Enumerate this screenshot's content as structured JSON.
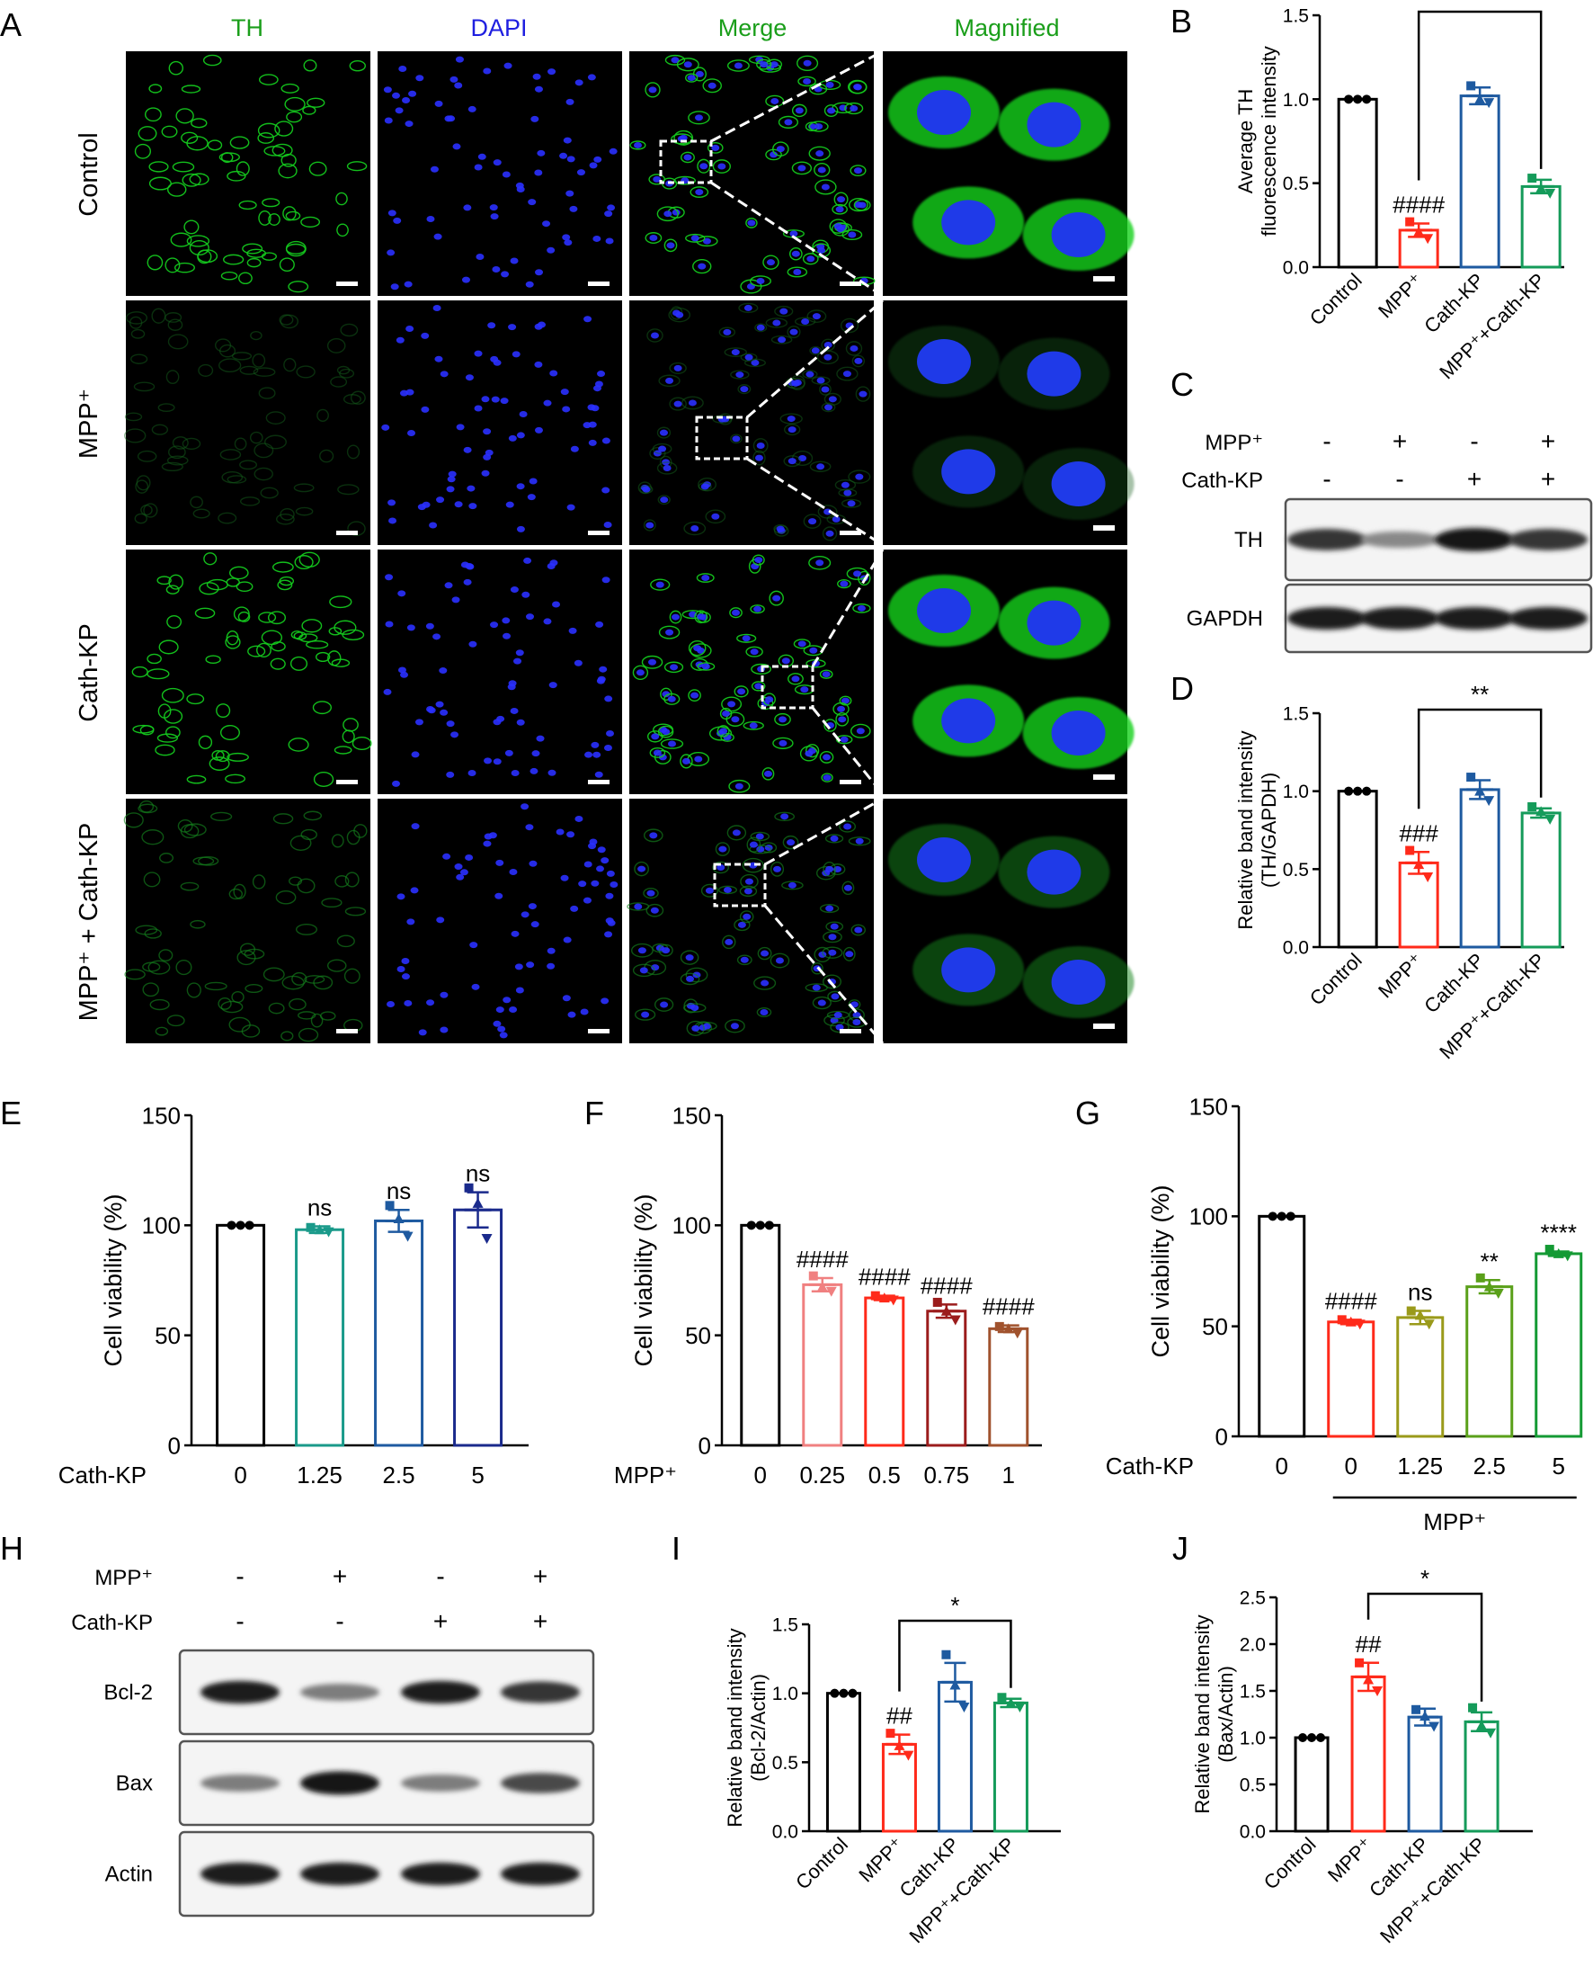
{
  "figure": {
    "panel_letters": [
      "A",
      "B",
      "C",
      "D",
      "E",
      "F",
      "G",
      "H",
      "I",
      "J"
    ],
    "micrograph": {
      "columns": [
        {
          "label": "TH",
          "color": "#1a9e1a"
        },
        {
          "label": "DAPI",
          "color": "#1f1fe0"
        },
        {
          "label": "Merge",
          "color": "#1a9e1a"
        },
        {
          "label": "Magnified",
          "color": "#1a9e1a"
        }
      ],
      "rows": [
        "Control",
        "MPP⁺",
        "Cath-KP",
        "MPP⁺ + Cath-KP"
      ],
      "th_intensity": [
        1.0,
        0.22,
        1.03,
        0.48
      ]
    },
    "blot_C": {
      "treatments": [
        {
          "label": "MPP⁺",
          "signs": [
            "-",
            "+",
            "-",
            "+"
          ]
        },
        {
          "label": "Cath-KP",
          "signs": [
            "-",
            "-",
            "+",
            "+"
          ]
        }
      ],
      "bands": [
        {
          "label": "TH",
          "intensity": [
            0.85,
            0.45,
            1.0,
            0.85
          ]
        },
        {
          "label": "GAPDH",
          "intensity": [
            0.95,
            0.95,
            0.95,
            0.95
          ]
        }
      ]
    },
    "blot_H": {
      "treatments": [
        {
          "label": "MPP⁺",
          "signs": [
            "-",
            "+",
            "-",
            "+"
          ]
        },
        {
          "label": "Cath-KP",
          "signs": [
            "-",
            "-",
            "+",
            "+"
          ]
        }
      ],
      "bands": [
        {
          "label": "Bcl-2",
          "intensity": [
            0.95,
            0.5,
            0.95,
            0.85
          ]
        },
        {
          "label": "Bax",
          "intensity": [
            0.5,
            1.0,
            0.5,
            0.75
          ]
        },
        {
          "label": "Actin",
          "intensity": [
            0.95,
            0.95,
            0.95,
            0.95
          ]
        }
      ]
    }
  },
  "chart_data": [
    {
      "id": "B",
      "type": "bar",
      "ylabel": [
        "Average TH",
        "fluorescence intensity"
      ],
      "ylim": [
        0,
        1.5
      ],
      "yticks": [
        0.0,
        0.5,
        1.0,
        1.5
      ],
      "categories": [
        "Control",
        "MPP⁺",
        "Cath-KP",
        "MPP⁺+Cath-KP"
      ],
      "values": [
        1.0,
        0.22,
        1.02,
        0.48
      ],
      "errors": [
        0.0,
        0.04,
        0.05,
        0.04
      ],
      "points": [
        [
          1.0,
          1.0,
          1.0
        ],
        [
          0.27,
          0.21,
          0.17
        ],
        [
          1.08,
          1.0,
          0.98
        ],
        [
          0.53,
          0.47,
          0.44
        ]
      ],
      "colors": [
        "#000000",
        "#ff2a1a",
        "#1e5aa0",
        "#159b5a"
      ],
      "annotations": [
        "",
        "####",
        "",
        ""
      ],
      "bracket": {
        "from": 1,
        "to": 3,
        "label": "**"
      }
    },
    {
      "id": "D",
      "type": "bar",
      "ylabel": [
        "Relative band intensity",
        "(TH/GAPDH)"
      ],
      "ylim": [
        0,
        1.5
      ],
      "yticks": [
        0.0,
        0.5,
        1.0,
        1.5
      ],
      "categories": [
        "Control",
        "MPP⁺",
        "Cath-KP",
        "MPP⁺+Cath-KP"
      ],
      "values": [
        1.0,
        0.54,
        1.01,
        0.86
      ],
      "errors": [
        0.0,
        0.07,
        0.06,
        0.03
      ],
      "points": [
        [
          1.0,
          1.0,
          1.0
        ],
        [
          0.62,
          0.53,
          0.45
        ],
        [
          1.09,
          1.0,
          0.94
        ],
        [
          0.9,
          0.87,
          0.82
        ]
      ],
      "colors": [
        "#000000",
        "#ff2a1a",
        "#1e5aa0",
        "#159b5a"
      ],
      "annotations": [
        "",
        "###",
        "",
        ""
      ],
      "bracket": {
        "from": 1,
        "to": 3,
        "label": "**"
      }
    },
    {
      "id": "E",
      "type": "bar",
      "ylabel": [
        "Cell viability (%)"
      ],
      "ylim": [
        0,
        150
      ],
      "yticks": [
        0,
        50,
        100,
        150
      ],
      "xprefix": "Cath-KP",
      "categories": [
        "0",
        "1.25",
        "2.5",
        "5"
      ],
      "values": [
        100,
        98,
        102,
        107
      ],
      "errors": [
        0,
        1.5,
        5,
        8
      ],
      "points": [
        [
          100,
          100,
          100
        ],
        [
          99,
          98,
          97
        ],
        [
          109,
          103,
          95
        ],
        [
          117,
          110,
          94
        ]
      ],
      "colors": [
        "#000000",
        "#1a9a8a",
        "#1e5aa0",
        "#1a2a8c"
      ],
      "annotations": [
        "",
        "ns",
        "ns",
        "ns"
      ]
    },
    {
      "id": "F",
      "type": "bar",
      "ylabel": [
        "Cell viability (%)"
      ],
      "ylim": [
        0,
        150
      ],
      "yticks": [
        0,
        50,
        100,
        150
      ],
      "xprefix": "MPP⁺",
      "categories": [
        "0",
        "0.25",
        "0.5",
        "0.75",
        "1"
      ],
      "values": [
        100,
        73,
        67,
        61,
        53
      ],
      "errors": [
        0,
        3,
        1,
        3,
        1.5
      ],
      "points": [
        [
          100,
          100,
          100
        ],
        [
          77,
          72,
          70
        ],
        [
          68,
          67,
          66
        ],
        [
          65,
          61,
          57
        ],
        [
          54,
          53,
          51
        ]
      ],
      "colors": [
        "#000000",
        "#f08080",
        "#ff2a1a",
        "#9b1c1c",
        "#a0522d"
      ],
      "annotations": [
        "",
        "####",
        "####",
        "####",
        "####"
      ]
    },
    {
      "id": "G",
      "type": "bar",
      "ylabel": [
        "Cell viability (%)"
      ],
      "ylim": [
        0,
        150
      ],
      "yticks": [
        0,
        50,
        100,
        150
      ],
      "xprefix": "Cath-KP",
      "categories": [
        "0",
        "0",
        "1.25",
        "2.5",
        "5"
      ],
      "values": [
        100,
        52,
        54,
        68,
        83
      ],
      "errors": [
        0,
        1,
        3,
        3,
        1
      ],
      "points": [
        [
          100,
          100,
          100
        ],
        [
          53,
          52,
          51
        ],
        [
          57,
          55,
          51
        ],
        [
          72,
          68,
          65
        ],
        [
          85,
          83,
          82
        ]
      ],
      "colors": [
        "#000000",
        "#ff2a1a",
        "#9a9a1a",
        "#5aa01a",
        "#149a34"
      ],
      "annotations": [
        "",
        "####",
        "ns",
        "**",
        "****"
      ],
      "group_label": "MPP⁺"
    },
    {
      "id": "I",
      "type": "bar",
      "ylabel": [
        "Relative band intensity",
        "(Bcl-2/Actin)"
      ],
      "ylim": [
        0,
        1.5
      ],
      "yticks": [
        0.0,
        0.5,
        1.0,
        1.5
      ],
      "categories": [
        "Control",
        "MPP⁺",
        "Cath-KP",
        "MPP⁺+Cath-KP"
      ],
      "values": [
        1.0,
        0.63,
        1.08,
        0.93
      ],
      "errors": [
        0.0,
        0.07,
        0.14,
        0.03
      ],
      "points": [
        [
          1.0,
          1.0,
          1.0
        ],
        [
          0.71,
          0.62,
          0.55
        ],
        [
          1.28,
          1.06,
          0.9
        ],
        [
          0.97,
          0.93,
          0.9
        ]
      ],
      "colors": [
        "#000000",
        "#ff2a1a",
        "#1e5aa0",
        "#159b5a"
      ],
      "annotations": [
        "",
        "##",
        "",
        ""
      ],
      "bracket": {
        "from": 1,
        "to": 3,
        "label": "*"
      }
    },
    {
      "id": "J",
      "type": "bar",
      "ylabel": [
        "Relative band intensity",
        "(Bax/Actin)"
      ],
      "ylim": [
        0,
        2.5
      ],
      "yticks": [
        0.0,
        0.5,
        1.0,
        1.5,
        2.0,
        2.5
      ],
      "categories": [
        "Control",
        "MPP⁺",
        "Cath-KP",
        "MPP⁺+Cath-KP"
      ],
      "values": [
        1.0,
        1.65,
        1.22,
        1.17
      ],
      "errors": [
        0.0,
        0.15,
        0.09,
        0.1
      ],
      "points": [
        [
          1.0,
          1.0,
          1.0
        ],
        [
          1.8,
          1.62,
          1.5
        ],
        [
          1.3,
          1.23,
          1.12
        ],
        [
          1.32,
          1.13,
          1.05
        ]
      ],
      "colors": [
        "#000000",
        "#ff2a1a",
        "#1e5aa0",
        "#159b5a"
      ],
      "annotations": [
        "",
        "##",
        "",
        ""
      ],
      "bracket": {
        "from": 1,
        "to": 3,
        "label": "*"
      }
    }
  ]
}
